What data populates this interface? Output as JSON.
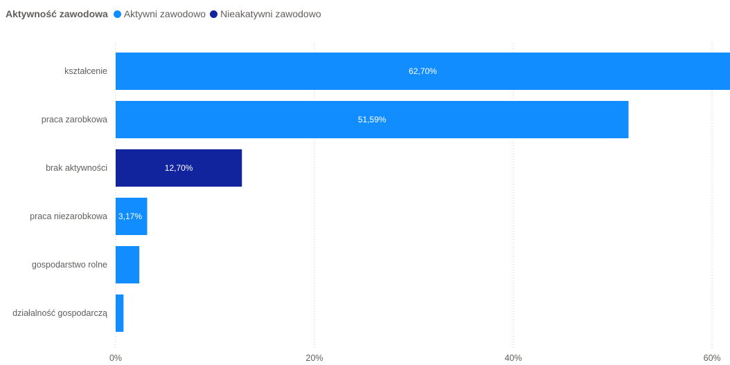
{
  "legend": {
    "title": "Aktywność zawodowa",
    "items": [
      {
        "label": "Aktywni zawodowo",
        "color": "#118dff"
      },
      {
        "label": "Nieakatywni zawodowo",
        "color": "#12239e"
      }
    ]
  },
  "chart_data": {
    "type": "bar",
    "orientation": "horizontal",
    "legend_title": "Aktywność zawodowa",
    "categories": [
      "kształcenie",
      "praca zarobkowa",
      "brak aktywności",
      "praca niezarobkowa",
      "gospodarstwo rolne",
      "działalność gospodarczą"
    ],
    "values": [
      62.7,
      51.59,
      12.7,
      3.17,
      2.38,
      0.79
    ],
    "series_membership": [
      "Aktywni zawodowo",
      "Aktywni zawodowo",
      "Nieakatywni zawodowo",
      "Aktywni zawodowo",
      "Aktywni zawodowo",
      "Aktywni zawodowo"
    ],
    "data_labels": [
      "62,70%",
      "51,59%",
      "12,70%",
      "3,17%",
      "",
      ""
    ],
    "series_colors": {
      "Aktywni zawodowo": "#118dff",
      "Nieakatywni zawodowo": "#12239e"
    },
    "xlim": [
      0,
      61.8
    ],
    "x_ticks": [
      0,
      20,
      40,
      60
    ],
    "x_tick_labels": [
      "0%",
      "20%",
      "40%",
      "60%"
    ],
    "grid": "vertical dotted"
  }
}
